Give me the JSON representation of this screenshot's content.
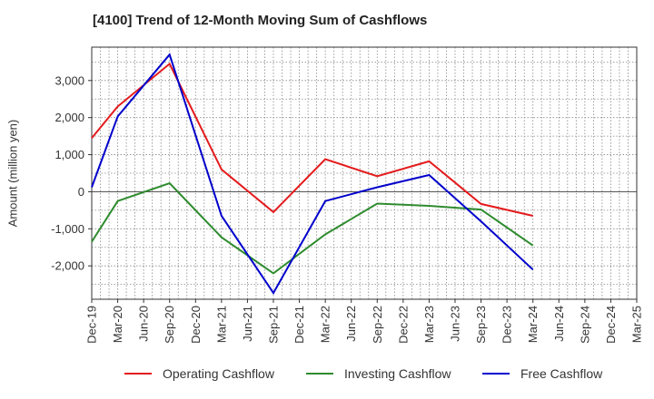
{
  "chart_data": {
    "type": "line",
    "title": "[4100]  Trend of 12-Month Moving Sum of Cashflows",
    "xlabel": "",
    "ylabel": "Amount (million yen)",
    "categories": [
      "Dec-19",
      "Mar-20",
      "Jun-20",
      "Sep-20",
      "Dec-20",
      "Mar-21",
      "Jun-21",
      "Sep-21",
      "Dec-21",
      "Mar-22",
      "Jun-22",
      "Sep-22",
      "Dec-22",
      "Mar-23",
      "Jun-23",
      "Sep-23",
      "Dec-23",
      "Mar-24",
      "Jun-24",
      "Sep-24",
      "Dec-24",
      "Mar-25"
    ],
    "ylim": [
      -2900,
      3900
    ],
    "yticks": [
      -2000,
      -1000,
      0,
      1000,
      2000,
      3000
    ],
    "ytick_labels": [
      "-2,000",
      "-1,000",
      "0",
      "1,000",
      "2,000",
      "3,000"
    ],
    "grid": true,
    "legend_position": "bottom",
    "series": [
      {
        "name": "Operating Cashflow",
        "color": "#e41a1c",
        "values": [
          1450,
          2300,
          null,
          3450,
          null,
          600,
          null,
          -550,
          null,
          880,
          null,
          420,
          null,
          820,
          null,
          -330,
          null,
          -650,
          null,
          null,
          null,
          null
        ]
      },
      {
        "name": "Investing Cashflow",
        "color": "#2e8b2e",
        "values": [
          -1350,
          -250,
          null,
          230,
          null,
          -1230,
          null,
          -2200,
          null,
          -1150,
          null,
          -320,
          null,
          -380,
          null,
          -480,
          null,
          -1450,
          null,
          null,
          null,
          null
        ]
      },
      {
        "name": "Free Cashflow",
        "color": "#0000cc",
        "values": [
          120,
          2030,
          null,
          3700,
          null,
          -650,
          null,
          -2730,
          null,
          -250,
          null,
          120,
          null,
          450,
          null,
          -800,
          null,
          -2100,
          null,
          null,
          null,
          null
        ]
      }
    ]
  }
}
